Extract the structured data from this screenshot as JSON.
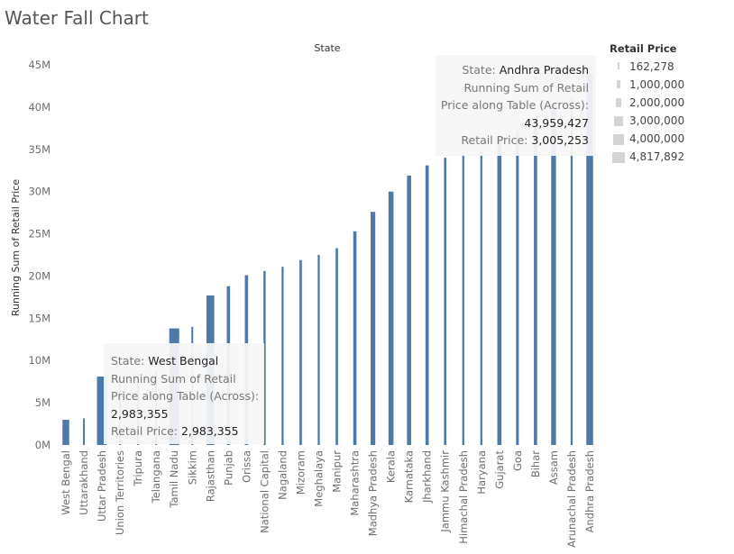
{
  "page_title": "Water Fall Chart",
  "chart_data": {
    "type": "bar",
    "title": "Water Fall Chart",
    "xlabel": "State",
    "ylabel": "Running Sum of Retail Price",
    "ylim": [
      0,
      45000000
    ],
    "yticks": [
      "0M",
      "5M",
      "10M",
      "15M",
      "20M",
      "25M",
      "30M",
      "35M",
      "40M",
      "45M"
    ],
    "categories": [
      "West Bengal",
      "Uttarakhand",
      "Uttar Pradesh",
      "Union Territories",
      "Tripura",
      "Telangana",
      "Tamil Nadu",
      "Sikkim",
      "Rajasthan",
      "Punjab",
      "Orissa",
      "National Capital",
      "Nagaland",
      "Mizoram",
      "Meghalaya",
      "Manipur",
      "Maharashtra",
      "Madhya Pradesh",
      "Kerala",
      "Karnataka",
      "Jharkhand",
      "Jammu Kashmir",
      "Himachal Pradesh",
      "Haryana",
      "Gujarat",
      "Goa",
      "Bihar",
      "Assam",
      "Arunachal Pradesh",
      "Andhra Pradesh"
    ],
    "running_sum": [
      2983355,
      3150000,
      8100000,
      8300000,
      8500000,
      8700000,
      13800000,
      14000000,
      17700000,
      18800000,
      20100000,
      20600000,
      21100000,
      21900000,
      22500000,
      23300000,
      25300000,
      27600000,
      30000000,
      31900000,
      33100000,
      34000000,
      34400000,
      34900000,
      36500000,
      37200000,
      38400000,
      40300000,
      40954174,
      43959427
    ],
    "retail_price": [
      2983355,
      162278,
      4817892,
      162278,
      162278,
      162278,
      4817892,
      162278,
      3600000,
      1000000,
      1000000,
      400000,
      300000,
      500000,
      300000,
      500000,
      1000000,
      1800000,
      2000000,
      1500000,
      1000000,
      500000,
      300000,
      300000,
      1500000,
      700000,
      1000000,
      1900000,
      300000,
      3005253
    ],
    "bar_color": "#4e79a7",
    "legend": {
      "title": "Retail Price",
      "position": "right",
      "values": [
        162278,
        1000000,
        2000000,
        3000000,
        4000000,
        4817892
      ],
      "labels": [
        "162,278",
        "1,000,000",
        "2,000,000",
        "3,000,000",
        "4,000,000",
        "4,817,892"
      ]
    },
    "grid": false
  },
  "tooltip_top": {
    "state_label": "State:",
    "state_value": "Andhra Pradesh",
    "sum_label_line1": "Running Sum of Retail",
    "sum_label_line2": "Price along Table (Across):",
    "sum_value": "43,959,427",
    "price_label": "Retail Price:",
    "price_value": "3,005,253"
  },
  "tooltip_bottom": {
    "state_label": "State:",
    "state_value": "West Bengal",
    "sum_label_line1": "Running Sum of Retail",
    "sum_label_line2": "Price along Table (Across):",
    "sum_value": "2,983,355",
    "price_label": "Retail Price:",
    "price_value": "2,983,355"
  }
}
